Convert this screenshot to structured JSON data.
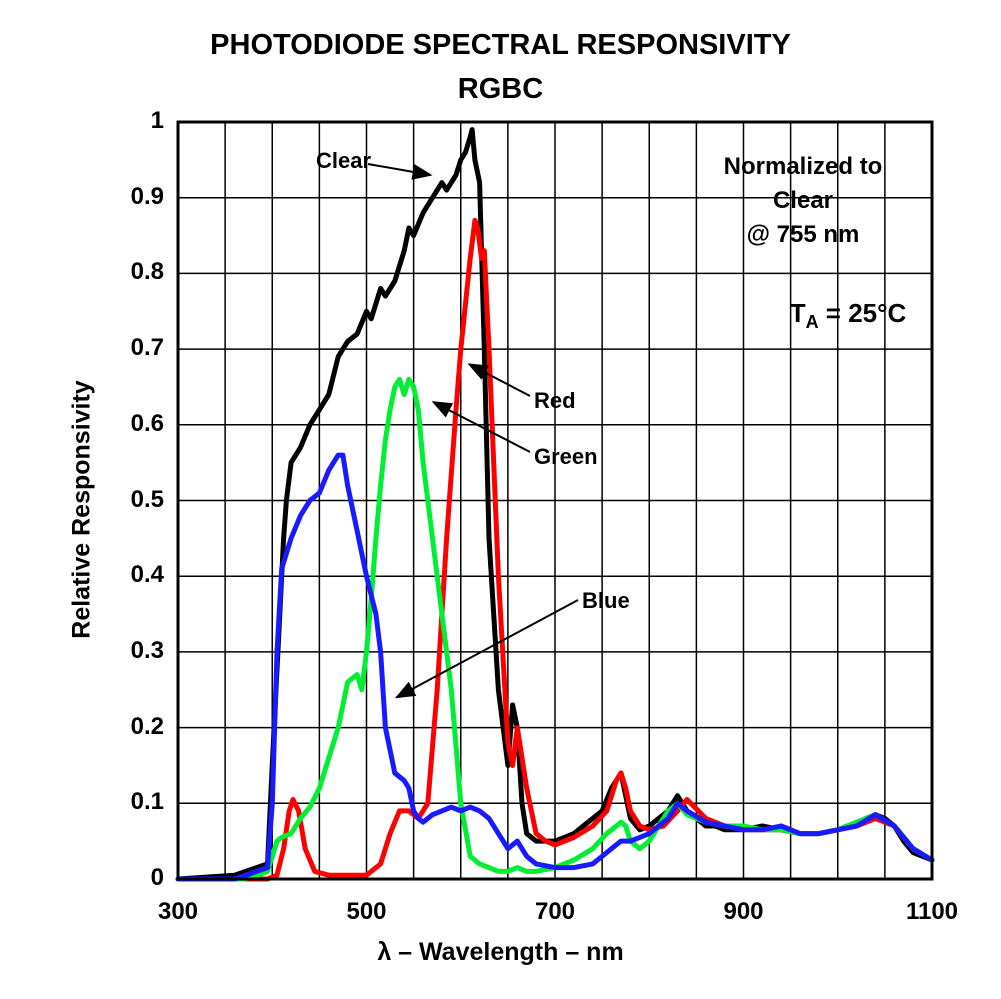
{
  "chart_data": {
    "type": "line",
    "title": "PHOTODIODE SPECTRAL RESPONSIVITY",
    "subtitle": "RGBC",
    "xlabel": "λ – Wavelength – nm",
    "ylabel": "Relative Responsivity",
    "xlim": [
      300,
      1100
    ],
    "ylim": [
      0,
      1
    ],
    "xticks": [
      "300",
      "500",
      "700",
      "900",
      "1100"
    ],
    "yticks": [
      "0",
      "0.1",
      "0.2",
      "0.3",
      "0.4",
      "0.5",
      "0.6",
      "0.7",
      "0.8",
      "0.9",
      "1"
    ],
    "grid": true,
    "annotations": {
      "normalized_line1": "Normalized to",
      "normalized_line2": "Clear",
      "normalized_line3": "@ 755 nm",
      "temp_prefix": "T",
      "temp_sub": "A",
      "temp_suffix": " = 25°C"
    },
    "series": [
      {
        "name": "Clear",
        "color": "#000000",
        "x": [
          300,
          360,
          395,
          402,
          408,
          412,
          415,
          420,
          430,
          440,
          450,
          460,
          470,
          480,
          490,
          500,
          505,
          510,
          515,
          520,
          530,
          540,
          545,
          550,
          560,
          570,
          580,
          585,
          590,
          595,
          600,
          605,
          610,
          612,
          615,
          620,
          625,
          630,
          640,
          650,
          655,
          660,
          665,
          670,
          680,
          690,
          700,
          710,
          720,
          730,
          740,
          750,
          760,
          770,
          780,
          790,
          800,
          810,
          820,
          830,
          840,
          850,
          860,
          870,
          880,
          900,
          920,
          940,
          960,
          980,
          1000,
          1010,
          1020,
          1030,
          1040,
          1050,
          1060,
          1070,
          1080,
          1090,
          1100
        ],
        "y": [
          0,
          0.005,
          0.02,
          0.2,
          0.35,
          0.45,
          0.5,
          0.55,
          0.57,
          0.6,
          0.62,
          0.64,
          0.69,
          0.71,
          0.72,
          0.75,
          0.74,
          0.76,
          0.78,
          0.77,
          0.79,
          0.83,
          0.86,
          0.85,
          0.88,
          0.9,
          0.92,
          0.91,
          0.92,
          0.93,
          0.95,
          0.96,
          0.98,
          0.99,
          0.95,
          0.92,
          0.7,
          0.45,
          0.25,
          0.15,
          0.23,
          0.2,
          0.1,
          0.06,
          0.05,
          0.05,
          0.05,
          0.055,
          0.06,
          0.07,
          0.08,
          0.09,
          0.12,
          0.14,
          0.08,
          0.065,
          0.07,
          0.08,
          0.09,
          0.11,
          0.09,
          0.08,
          0.07,
          0.07,
          0.065,
          0.065,
          0.07,
          0.065,
          0.06,
          0.06,
          0.065,
          0.07,
          0.07,
          0.08,
          0.085,
          0.08,
          0.07,
          0.05,
          0.035,
          0.03,
          0.025
        ]
      },
      {
        "name": "Red",
        "color": "#ff0000",
        "x": [
          300,
          395,
          405,
          412,
          418,
          422,
          428,
          435,
          445,
          460,
          480,
          500,
          515,
          525,
          535,
          545,
          555,
          565,
          575,
          585,
          595,
          600,
          605,
          610,
          615,
          618,
          622,
          625,
          630,
          640,
          650,
          655,
          660,
          670,
          680,
          690,
          700,
          720,
          740,
          755,
          765,
          770,
          775,
          780,
          790,
          800,
          815,
          830,
          840,
          860,
          880,
          900,
          920,
          940,
          960,
          980,
          1000,
          1020,
          1040,
          1060,
          1080,
          1100
        ],
        "y": [
          0,
          0,
          0.005,
          0.04,
          0.09,
          0.105,
          0.09,
          0.04,
          0.01,
          0.005,
          0.005,
          0.005,
          0.02,
          0.06,
          0.09,
          0.09,
          0.08,
          0.1,
          0.25,
          0.45,
          0.62,
          0.7,
          0.76,
          0.82,
          0.87,
          0.86,
          0.82,
          0.83,
          0.7,
          0.4,
          0.18,
          0.15,
          0.2,
          0.12,
          0.06,
          0.05,
          0.045,
          0.055,
          0.07,
          0.09,
          0.13,
          0.14,
          0.12,
          0.09,
          0.07,
          0.065,
          0.07,
          0.09,
          0.105,
          0.08,
          0.07,
          0.065,
          0.065,
          0.065,
          0.06,
          0.06,
          0.065,
          0.07,
          0.08,
          0.07,
          0.04,
          0.025
        ]
      },
      {
        "name": "Green",
        "color": "#00ee33",
        "x": [
          300,
          370,
          385,
          395,
          400,
          405,
          410,
          420,
          430,
          440,
          450,
          460,
          470,
          480,
          490,
          495,
          500,
          505,
          510,
          515,
          520,
          525,
          530,
          535,
          540,
          545,
          550,
          555,
          560,
          570,
          580,
          590,
          600,
          610,
          620,
          630,
          640,
          650,
          660,
          670,
          680,
          700,
          720,
          740,
          755,
          765,
          770,
          775,
          780,
          790,
          800,
          810,
          820,
          830,
          840,
          860,
          880,
          900,
          920,
          940,
          960,
          980,
          1000,
          1020,
          1040,
          1060,
          1080,
          1100
        ],
        "y": [
          0,
          0,
          0.005,
          0.01,
          0.03,
          0.05,
          0.055,
          0.06,
          0.08,
          0.095,
          0.12,
          0.16,
          0.2,
          0.26,
          0.27,
          0.25,
          0.3,
          0.37,
          0.45,
          0.52,
          0.58,
          0.62,
          0.65,
          0.66,
          0.64,
          0.66,
          0.65,
          0.62,
          0.55,
          0.45,
          0.35,
          0.25,
          0.1,
          0.03,
          0.02,
          0.015,
          0.01,
          0.01,
          0.015,
          0.01,
          0.01,
          0.015,
          0.025,
          0.04,
          0.06,
          0.07,
          0.075,
          0.07,
          0.05,
          0.04,
          0.05,
          0.07,
          0.09,
          0.1,
          0.085,
          0.075,
          0.07,
          0.07,
          0.065,
          0.065,
          0.06,
          0.06,
          0.065,
          0.075,
          0.085,
          0.07,
          0.04,
          0.025
        ]
      },
      {
        "name": "Blue",
        "color": "#1a1aff",
        "x": [
          300,
          360,
          395,
          400,
          405,
          410,
          415,
          420,
          430,
          440,
          450,
          460,
          470,
          475,
          480,
          490,
          500,
          510,
          515,
          520,
          530,
          540,
          545,
          550,
          555,
          560,
          565,
          570,
          580,
          590,
          600,
          610,
          620,
          630,
          640,
          650,
          660,
          670,
          680,
          700,
          720,
          740,
          760,
          770,
          780,
          790,
          800,
          820,
          830,
          840,
          860,
          880,
          900,
          920,
          940,
          960,
          980,
          1000,
          1020,
          1040,
          1060,
          1080,
          1100
        ],
        "y": [
          0,
          0,
          0.015,
          0.1,
          0.3,
          0.41,
          0.43,
          0.45,
          0.48,
          0.5,
          0.51,
          0.54,
          0.56,
          0.56,
          0.52,
          0.46,
          0.4,
          0.35,
          0.3,
          0.2,
          0.14,
          0.13,
          0.12,
          0.09,
          0.08,
          0.075,
          0.08,
          0.085,
          0.09,
          0.095,
          0.09,
          0.095,
          0.09,
          0.08,
          0.06,
          0.04,
          0.05,
          0.03,
          0.02,
          0.015,
          0.015,
          0.02,
          0.04,
          0.05,
          0.05,
          0.055,
          0.06,
          0.08,
          0.1,
          0.09,
          0.075,
          0.07,
          0.065,
          0.065,
          0.07,
          0.06,
          0.06,
          0.065,
          0.07,
          0.085,
          0.07,
          0.04,
          0.025
        ]
      }
    ],
    "labels": [
      {
        "series": "Clear",
        "text": "Clear",
        "arrow_to": [
          568,
          0.93
        ]
      },
      {
        "series": "Red",
        "text": "Red",
        "arrow_to": [
          609,
          0.68
        ]
      },
      {
        "series": "Green",
        "text": "Green",
        "arrow_to": [
          571,
          0.63
        ]
      },
      {
        "series": "Blue",
        "text": "Blue",
        "arrow_to": [
          532,
          0.24
        ]
      }
    ]
  }
}
